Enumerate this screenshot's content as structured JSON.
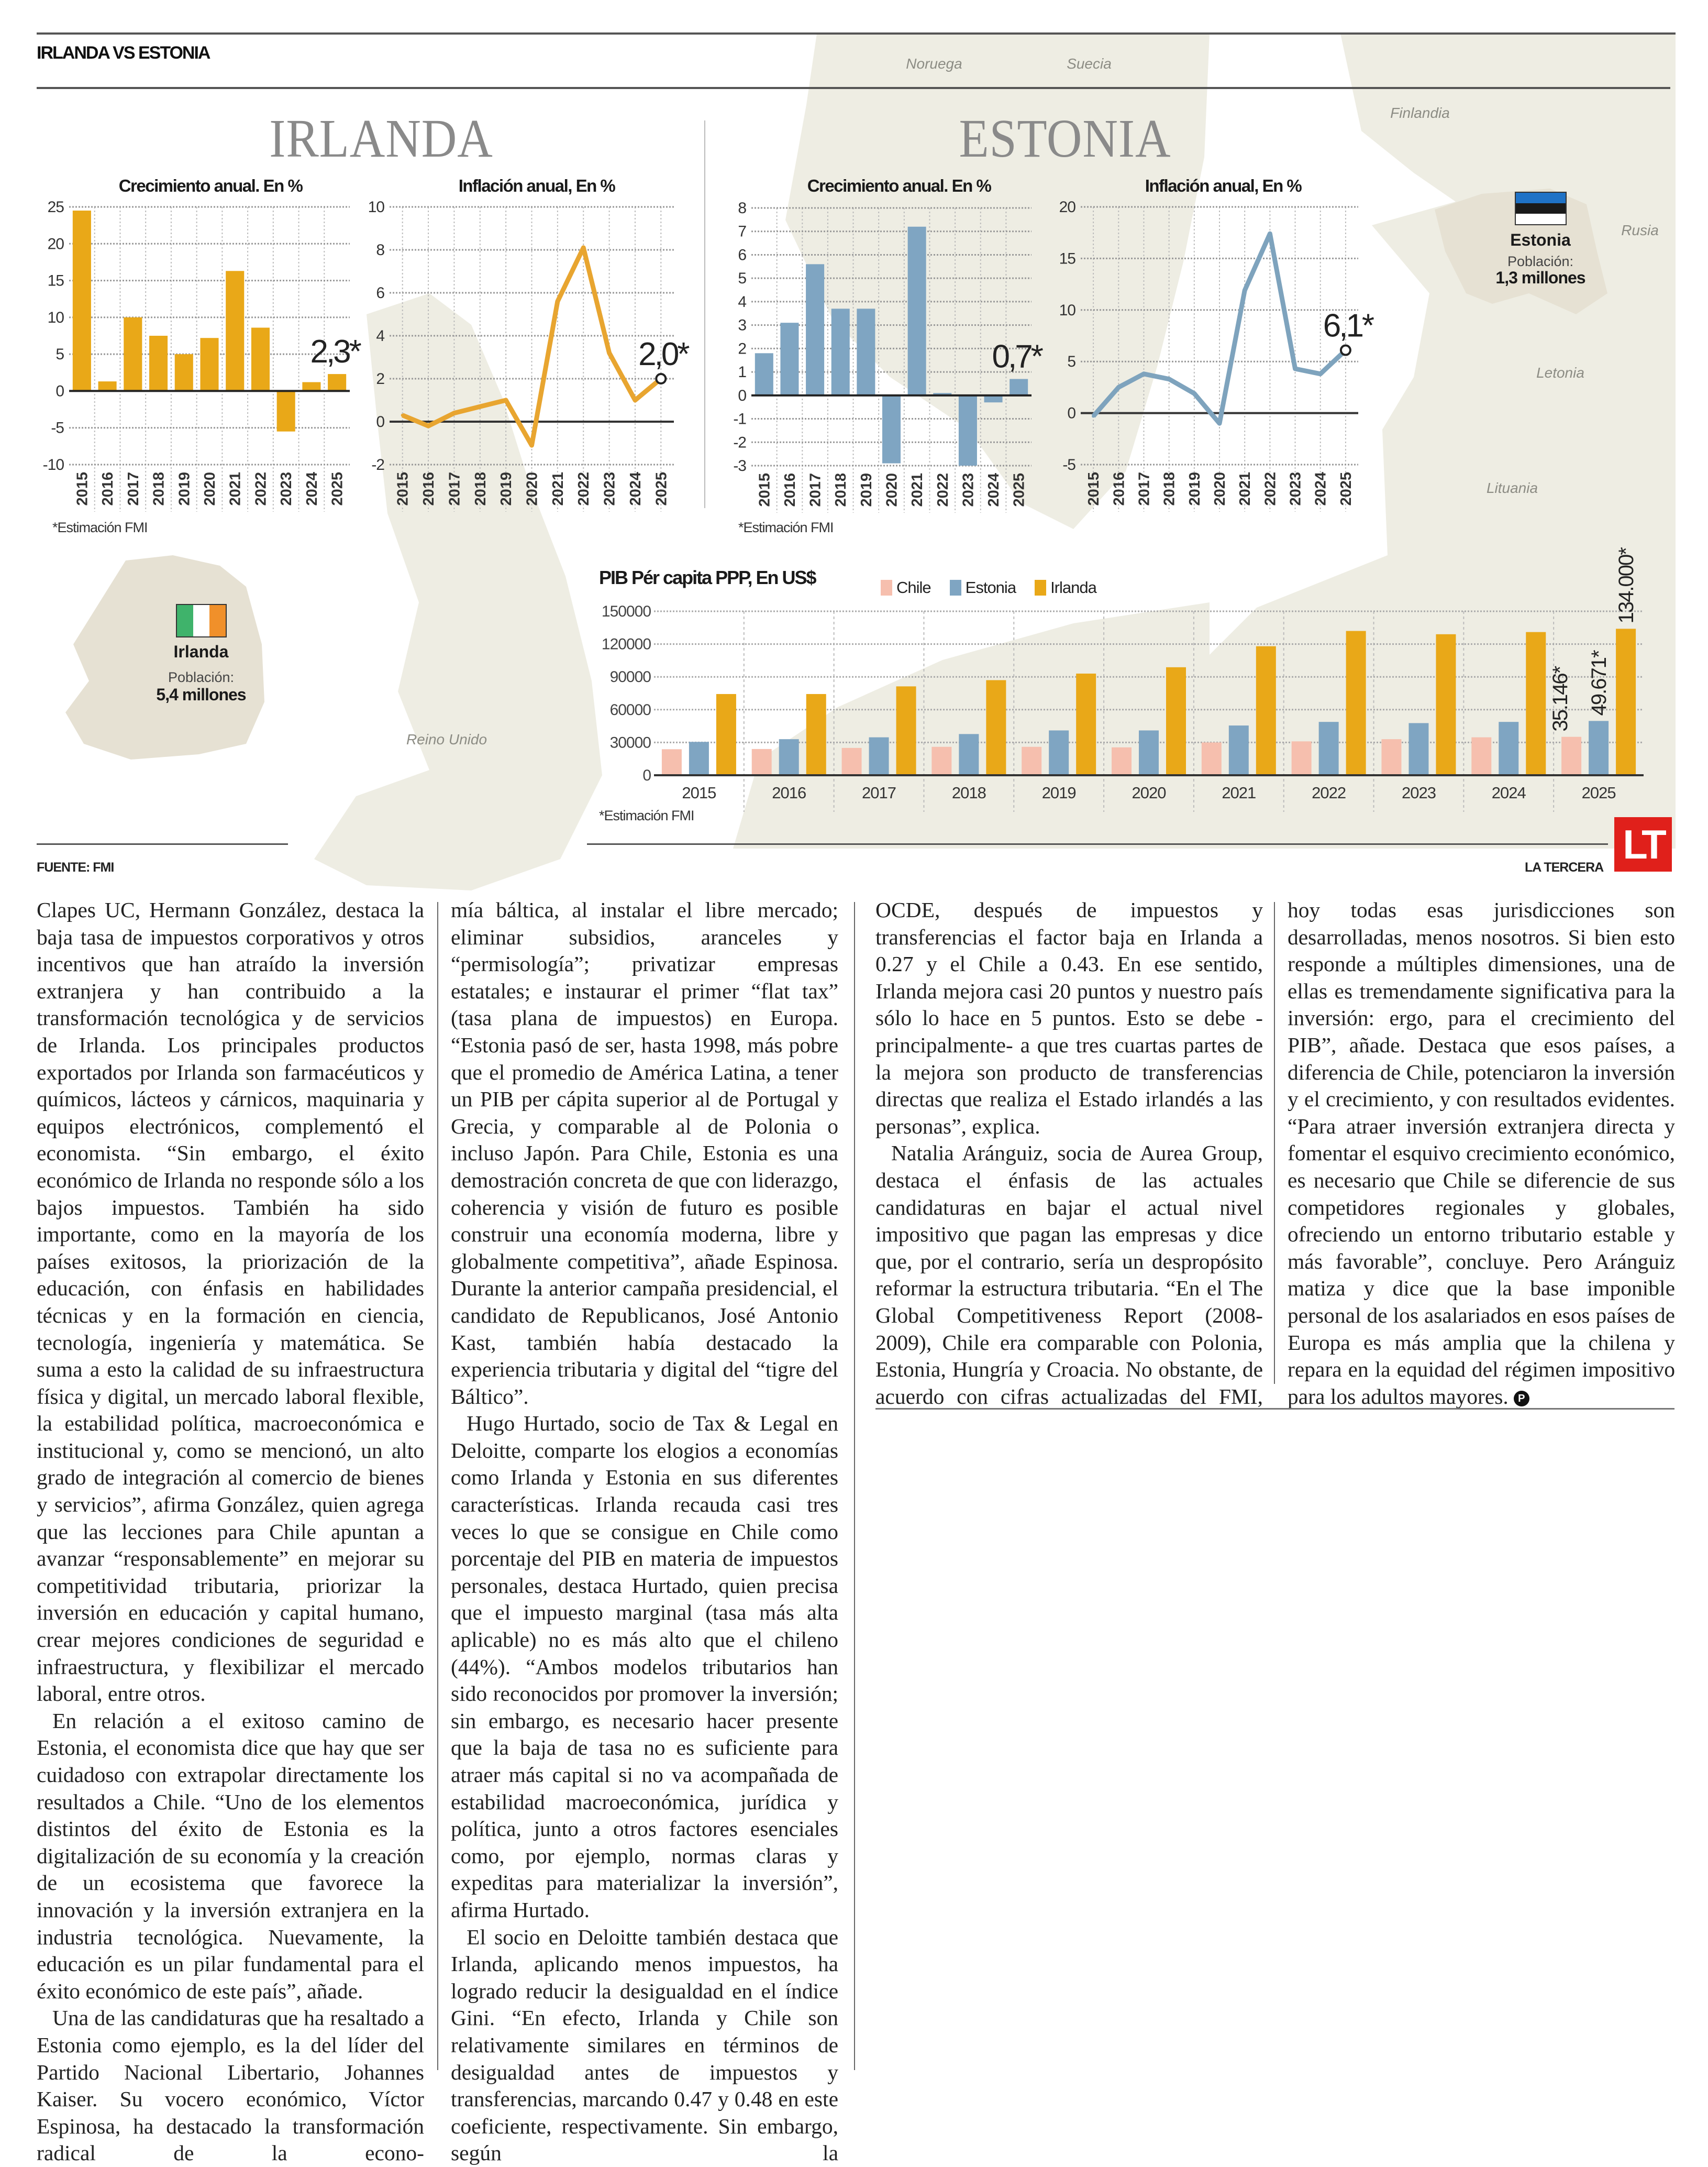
{
  "header": {
    "section": "IRLANDA VS ESTONIA"
  },
  "titles": {
    "irlanda": "IRLANDA",
    "estonia": "ESTONIA"
  },
  "map_labels": {
    "noruega": "Noruega",
    "suecia": "Suecia",
    "finlandia": "Finlandia",
    "rusia": "Rusia",
    "letonia": "Letonia",
    "lituania": "Lituania",
    "reino_unido": "Reino Unido"
  },
  "countries": {
    "irlanda": {
      "name": "Irlanda",
      "pop_label": "Población:",
      "pop_value": "5,4 millones",
      "flag_colors": [
        "#3fb36b",
        "#ffffff",
        "#f0902a"
      ]
    },
    "estonia": {
      "name": "Estonia",
      "pop_label": "Población:",
      "pop_value": "1,3 millones",
      "flag_colors": [
        "#1f72c6",
        "#1a1a1a",
        "#ffffff"
      ]
    }
  },
  "notes": {
    "irlanda": "*Estimación FMI",
    "estonia": "*Estimación FMI",
    "pib": "*Estimación FMI"
  },
  "footer": {
    "source": "FUENTE: FMI",
    "brand": "LA TERCERA",
    "logo": "LT"
  },
  "colors": {
    "irlanda": "#e9a818",
    "estonia": "#7fa5c2",
    "chile": "#f6bfae",
    "irlanda_line": "#e8a530",
    "estonia_line": "#7ea3bd",
    "map_land": "#eeede3",
    "map_country": "#e6e1d3",
    "logo": "#e0201b"
  },
  "chart_data": [
    {
      "type": "bar",
      "title": "Crecimiento anual. En %",
      "country": "Irlanda",
      "categories": [
        "2015",
        "2016",
        "2017",
        "2018",
        "2019",
        "2020",
        "2021",
        "2022",
        "2023",
        "2024",
        "2025"
      ],
      "values": [
        24.5,
        1.3,
        10.0,
        7.5,
        5.0,
        7.2,
        16.3,
        8.6,
        -5.5,
        1.2,
        2.3
      ],
      "ylim": [
        -10,
        25
      ],
      "yticks": [
        25,
        20,
        15,
        10,
        5,
        0,
        -5,
        -10
      ],
      "grid": true,
      "annotation": "2,3*",
      "color": "#e9a818"
    },
    {
      "type": "line",
      "title": "Inflación anual, En %",
      "country": "Irlanda",
      "categories": [
        "2015",
        "2016",
        "2017",
        "2018",
        "2019",
        "2020",
        "2021",
        "2022",
        "2023",
        "2024",
        "2025"
      ],
      "values": [
        0.3,
        -0.2,
        0.4,
        0.7,
        1.0,
        -1.1,
        5.6,
        8.1,
        3.2,
        1.0,
        2.0
      ],
      "ylim": [
        -2,
        10
      ],
      "yticks": [
        10,
        8,
        6,
        4,
        2,
        0,
        -2
      ],
      "grid": true,
      "annotation": "2,0*",
      "color": "#e8a530"
    },
    {
      "type": "bar",
      "title": "Crecimiento anual. En %",
      "country": "Estonia",
      "categories": [
        "2015",
        "2016",
        "2017",
        "2018",
        "2019",
        "2020",
        "2021",
        "2022",
        "2023",
        "2024",
        "2025"
      ],
      "values": [
        1.8,
        3.1,
        5.6,
        3.7,
        3.7,
        -2.9,
        7.2,
        0.1,
        -3.0,
        -0.3,
        0.7
      ],
      "ylim": [
        -3,
        8
      ],
      "yticks": [
        8,
        7,
        6,
        5,
        4,
        3,
        2,
        1,
        0,
        -1,
        -2,
        -3
      ],
      "grid": true,
      "annotation": "0,7*",
      "color": "#7fa5c2"
    },
    {
      "type": "line",
      "title": "Inflación anual, En %",
      "country": "Estonia",
      "categories": [
        "2015",
        "2016",
        "2017",
        "2018",
        "2019",
        "2020",
        "2021",
        "2022",
        "2023",
        "2024",
        "2025"
      ],
      "values": [
        -0.3,
        2.5,
        3.8,
        3.3,
        1.9,
        -1.0,
        11.9,
        17.4,
        4.3,
        3.8,
        6.1
      ],
      "ylim": [
        -5,
        20
      ],
      "yticks": [
        20,
        15,
        10,
        5,
        0,
        -5
      ],
      "grid": true,
      "annotation": "6,1*",
      "color": "#7ea3bd"
    },
    {
      "type": "bar",
      "title": "PIB Pér capita PPP, En US$",
      "categories": [
        "2015",
        "2016",
        "2017",
        "2018",
        "2019",
        "2020",
        "2021",
        "2022",
        "2023",
        "2024",
        "2025"
      ],
      "series": [
        {
          "name": "Chile",
          "color": "#f6bfae",
          "values": [
            23800,
            24000,
            25000,
            26000,
            26000,
            25500,
            30000,
            31000,
            33000,
            34700,
            35146
          ]
        },
        {
          "name": "Estonia",
          "color": "#7fa5c2",
          "values": [
            30500,
            33000,
            34700,
            37700,
            41000,
            41000,
            45500,
            48800,
            47700,
            48800,
            49671
          ]
        },
        {
          "name": "Irlanda",
          "color": "#e9a818",
          "values": [
            74300,
            74300,
            81300,
            87000,
            93000,
            98800,
            118000,
            132000,
            129000,
            131000,
            134000
          ]
        }
      ],
      "ylim": [
        0,
        150000
      ],
      "yticks": [
        150000,
        120000,
        90000,
        60000,
        30000,
        0
      ],
      "grid": true,
      "legend": "top",
      "annotations": [
        "35.146*",
        "49.671*",
        "134.000*"
      ]
    }
  ],
  "article": {
    "columns": [
      [
        {
          "cont": true,
          "text": "Clapes UC, Hermann González, destaca la baja tasa de impuestos corporativos y otros incentivos que han atraído la inversión extranjera y han contribuido a la transformación tecnológica y de servicios de Irlanda. Los principales productos exportados por Irlanda son farmacéuticos y químicos, lácteos y cárnicos, maquinaria y equipos electrónicos, complementó el economista. “Sin embargo, el éxito económico de Irlanda no responde sólo a los bajos impuestos. También ha sido importante, como en la mayoría de los países exitosos, la priorización de la educación, con énfasis en habilidades técnicas y en la formación en ciencia, tecnología, ingeniería y matemática. Se suma a esto la calidad de su infraestructura física y digital, un mercado laboral flexible, la estabilidad política, macroeconómica e institucional y, como se mencionó, un alto grado de integración al comercio de bienes y servicios”, afirma González, quien agrega que las lecciones para Chile apuntan a avanzar “responsablemente” en mejorar su competitividad tributaria, priorizar la inversión en educación y capital humano, crear mejores condiciones de seguridad e infraestructura, y flexibilizar el mercado laboral, entre otros."
        },
        {
          "cont": false,
          "text": "En relación a el exitoso camino de Estonia, el economista dice que hay que ser cuidadoso con extrapolar directamente los resultados a Chile. “Uno de los elementos distintos del éxito de Estonia es la digitalización de su economía y la creación de un ecosistema que favorece la innovación y la inversión extranjera en la industria tecnológica. Nuevamente, la educación es un pilar fundamental para el éxito económico de este país”, añade."
        },
        {
          "cont": false,
          "text": "Una de las candidaturas que ha resaltado a Estonia como ejemplo, es la del líder del Partido Nacional Libertario, Johannes Kaiser. Su vocero económico, Víctor Espinosa, ha destacado la transformación radical de la econo-"
        }
      ],
      [
        {
          "cont": true,
          "text": "mía báltica, al instalar el libre mercado; eliminar subsidios, aranceles y “permisología”; privatizar empresas estatales; e instaurar el primer “flat tax” (tasa plana de impuestos) en Europa. “Estonia pasó de ser, hasta 1998, más pobre que el promedio de América Latina, a tener un PIB per cápita superior al de Portugal y Grecia, y comparable al de Polonia o incluso Japón. Para Chile, Estonia es una demostración concreta de que con liderazgo, coherencia y visión de futuro es posible construir una economía moderna, libre y globalmente competitiva”, añade Espinosa. Durante la anterior campaña presidencial, el candidato de Republicanos, José Antonio Kast, también había destacado la experiencia tributaria y digital del “tigre del Báltico”."
        },
        {
          "cont": false,
          "text": "Hugo Hurtado, socio de Tax & Legal en Deloitte, comparte los elogios a economías como Irlanda y Estonia en sus diferentes características. Irlanda recauda casi tres veces lo que se consigue en Chile como porcentaje del PIB en materia de impuestos personales, destaca Hurtado, quien precisa que el impuesto marginal (tasa más alta aplicable) no es más alto que el chileno (44%). “Ambos modelos tributarios han sido reconocidos por promover la inversión; sin embargo, es necesario hacer presente que la baja de tasa no es suficiente para atraer más capital si no va acompañada de estabilidad macroeconómica, jurídica y política, junto a otros factores esenciales como, por ejemplo, normas claras y expeditas para materializar la inversión”, afirma Hurtado."
        },
        {
          "cont": false,
          "text": "El socio en Deloitte también destaca que Irlanda, aplicando menos impuestos, ha logrado reducir la desigualdad en el índice Gini. “En efecto, Irlanda y Chile son relativamente similares en términos de desigualdad antes de impuestos y transferencias, marcando 0.47 y 0.48 en este coeficiente, respectivamente. Sin embargo, según la"
        }
      ],
      [
        {
          "cont": true,
          "text": "OCDE, después de impuestos y transferencias el factor baja en Irlanda a 0.27 y el Chile a 0.43. En ese sentido, Irlanda mejora casi 20 puntos y nuestro país sólo lo hace en 5 puntos. Esto se debe -principalmente- a que tres cuartas partes de la mejora son producto de transferencias directas que realiza el Estado irlandés a las personas”, explica."
        },
        {
          "cont": false,
          "text": "Natalia Aránguiz, socia de Aurea Group, destaca el énfasis de las actuales candidaturas en bajar el actual nivel impositivo que pagan las empresas y dice que, por el contrario, sería un despropósito reformar la estructura tributaria. “En el The Global Competitiveness Report (2008-2009), Chile era comparable con Polonia, Estonia, Hungría y Croacia. No obstante, de acuerdo con cifras actualizadas del FMI,"
        }
      ],
      [
        {
          "cont": true,
          "text": "hoy todas esas jurisdicciones son desarrolladas, menos nosotros. Si bien esto responde a múltiples dimensiones, una de ellas es tremendamente significativa para la inversión: ergo, para el crecimiento del PIB”, añade. Destaca que esos países, a diferencia de Chile, potenciaron la inversión y el crecimiento, y con resultados evidentes. “Para atraer inversión extranjera directa y fomentar el esquivo crecimiento económico, es necesario que Chile se diferencie de sus competidores regionales y globales, ofreciendo un entorno tributario estable y más favorable”, concluye. Pero Aránguiz matiza y dice que la base imponible personal de los asalariados en esos países de Europa es más amplia que la chilena y repara en la equidad del régimen impositivo para los adultos mayores."
        }
      ]
    ],
    "end_mark": "P"
  }
}
